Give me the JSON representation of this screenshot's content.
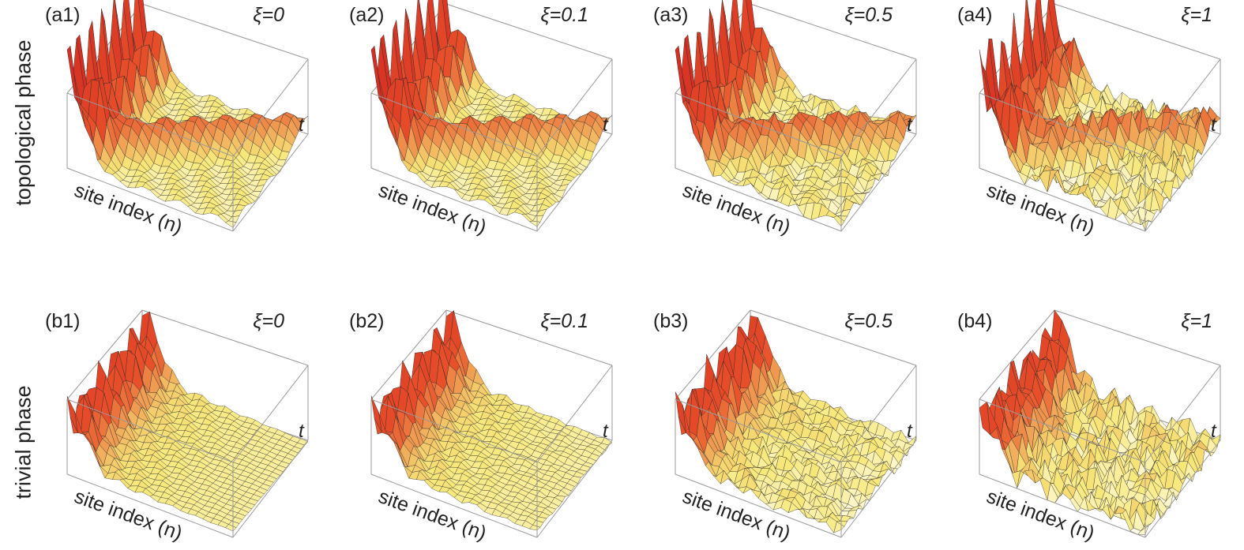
{
  "row_labels": {
    "top": "topological phase",
    "bottom": "trivial phase"
  },
  "chart_data": [
    {
      "type": "surface",
      "panel": "(a1)",
      "phase": "topological",
      "xi": "ξ=0",
      "x_axis_label": "site index (n)",
      "y_axis_label": "t",
      "edge_peak_relative": 1.0,
      "disorder_relative": 0.0
    },
    {
      "type": "surface",
      "panel": "(a2)",
      "phase": "topological",
      "xi": "ξ=0.1",
      "x_axis_label": "site index (n)",
      "y_axis_label": "t",
      "edge_peak_relative": 1.0,
      "disorder_relative": 0.1
    },
    {
      "type": "surface",
      "panel": "(a3)",
      "phase": "topological",
      "xi": "ξ=0.5",
      "x_axis_label": "site index (n)",
      "y_axis_label": "t",
      "edge_peak_relative": 0.95,
      "disorder_relative": 0.5
    },
    {
      "type": "surface",
      "panel": "(a4)",
      "phase": "topological",
      "xi": "ξ=1",
      "x_axis_label": "site index (n)",
      "y_axis_label": "t",
      "edge_peak_relative": 0.85,
      "disorder_relative": 1.0
    },
    {
      "type": "surface",
      "panel": "(b1)",
      "phase": "trivial",
      "xi": "ξ=0",
      "x_axis_label": "site index (n)",
      "y_axis_label": "t",
      "edge_peak_relative": 0.45,
      "disorder_relative": 0.0
    },
    {
      "type": "surface",
      "panel": "(b2)",
      "phase": "trivial",
      "xi": "ξ=0.1",
      "x_axis_label": "site index (n)",
      "y_axis_label": "t",
      "edge_peak_relative": 0.45,
      "disorder_relative": 0.1
    },
    {
      "type": "surface",
      "panel": "(b3)",
      "phase": "trivial",
      "xi": "ξ=0.5",
      "x_axis_label": "site index (n)",
      "y_axis_label": "t",
      "edge_peak_relative": 0.45,
      "disorder_relative": 0.5
    },
    {
      "type": "surface",
      "panel": "(b4)",
      "phase": "trivial",
      "xi": "ξ=1",
      "x_axis_label": "site index (n)",
      "y_axis_label": "t",
      "edge_peak_relative": 0.45,
      "disorder_relative": 1.0
    }
  ],
  "colors": {
    "high": "#cc1f1f",
    "mid": "#e8502a",
    "low": "#f7e87a",
    "base": "#fffbe6",
    "box": "#9a9a9a",
    "mesh": "#2b2b2b"
  }
}
